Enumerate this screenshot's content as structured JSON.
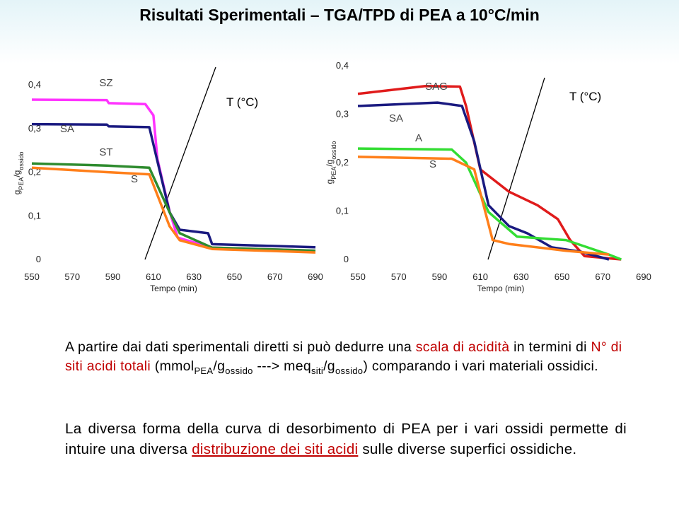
{
  "title": "Risultati Sperimentali – TGA/TPD di PEA a 10°C/min",
  "chart_data": [
    {
      "type": "line",
      "x_label": "Tempo (min)",
      "annotation": "T (°C)",
      "y_label": [
        {
          "text": "g"
        },
        {
          "text": "PEA",
          "sub": true
        },
        {
          "text": "/g"
        },
        {
          "text": "ossido",
          "sub": true
        }
      ],
      "xlim": [
        550,
        690
      ],
      "xticks": [
        550,
        570,
        590,
        610,
        630,
        650,
        670,
        690
      ],
      "ylim": [
        0,
        0.4
      ],
      "yticks": [
        0,
        {
          "value": 0.1,
          "label": "0,1"
        },
        {
          "value": 0.2,
          "label": "0,2"
        },
        {
          "value": 0.3,
          "label": "0,3"
        },
        {
          "value": 0.4,
          "label": "0,4"
        }
      ],
      "series": [
        {
          "name": "SZ",
          "color": "#ff33ff",
          "x": [
            550,
            587,
            588,
            606,
            610,
            612,
            614,
            618,
            622,
            639,
            690
          ],
          "values": [
            0.366,
            0.365,
            0.358,
            0.356,
            0.33,
            0.23,
            0.19,
            0.11,
            0.05,
            0.027,
            0.02
          ]
        },
        {
          "name": "SA",
          "color": "#1a1a80",
          "x": [
            550,
            587,
            588,
            608,
            613,
            618,
            623,
            637,
            639,
            690
          ],
          "values": [
            0.31,
            0.309,
            0.305,
            0.303,
            0.205,
            0.108,
            0.068,
            0.06,
            0.035,
            0.028
          ]
        },
        {
          "name": "ST",
          "color": "#2e8b2e",
          "x": [
            550,
            587,
            608,
            618,
            623,
            639,
            690
          ],
          "values": [
            0.22,
            0.215,
            0.21,
            0.108,
            0.06,
            0.027,
            0.02
          ]
        },
        {
          "name": "S",
          "color": "#ff7f1a",
          "x": [
            550,
            587,
            608,
            618,
            623,
            639,
            690
          ],
          "values": [
            0.21,
            0.2,
            0.195,
            0.076,
            0.044,
            0.024,
            0.016
          ]
        }
      ]
    },
    {
      "type": "line",
      "x_label": "Tempo (min)",
      "annotation": "T (°C)",
      "y_label": [
        {
          "text": "g"
        },
        {
          "text": "PEA",
          "sub": true
        },
        {
          "text": "/g"
        },
        {
          "text": "ossido",
          "sub": true
        }
      ],
      "xlim": [
        550,
        690
      ],
      "xticks": [
        550,
        570,
        590,
        610,
        630,
        650,
        670,
        690
      ],
      "ylim": [
        0,
        0.4
      ],
      "yticks": [
        0,
        {
          "value": 0.1,
          "label": "0,1"
        },
        {
          "value": 0.2,
          "label": "0,2"
        },
        {
          "value": 0.3,
          "label": "0,3"
        },
        {
          "value": 0.4,
          "label": "0,4"
        }
      ],
      "series": [
        {
          "name": "SAG",
          "color": "#e01b1b",
          "x": [
            550,
            583,
            600,
            603,
            610,
            624,
            638,
            648,
            654,
            661,
            679
          ],
          "values": [
            0.342,
            0.358,
            0.357,
            0.317,
            0.186,
            0.14,
            0.112,
            0.083,
            0.04,
            0.007,
            0
          ]
        },
        {
          "name": "SA",
          "color": "#1a1a80",
          "x": [
            550,
            589,
            601,
            607,
            614,
            624,
            633,
            645,
            659,
            673
          ],
          "values": [
            0.317,
            0.324,
            0.317,
            0.244,
            0.112,
            0.069,
            0.054,
            0.025,
            0.016,
            0
          ]
        },
        {
          "name": "A",
          "color": "#33dd33",
          "x": [
            550,
            596,
            603,
            614,
            628,
            652,
            673,
            679
          ],
          "values": [
            0.229,
            0.227,
            0.2,
            0.098,
            0.047,
            0.04,
            0.01,
            0
          ]
        },
        {
          "name": "S",
          "color": "#ff7f1a",
          "x": [
            550,
            596,
            607,
            616,
            624,
            652,
            673
          ],
          "values": [
            0.212,
            0.208,
            0.186,
            0.04,
            0.032,
            0.018,
            0.01
          ]
        }
      ]
    }
  ],
  "text": {
    "paragraph_1": [
      {
        "text": "A partire dai dati sperimentali diretti si può dedurre una "
      },
      {
        "text": "scala di acidità",
        "color": "#c00000"
      },
      {
        "text": " in termini di "
      },
      {
        "text": "N° di siti acidi totali",
        "color": "#c00000"
      },
      {
        "text": " (mmol"
      },
      {
        "text": "PEA",
        "sub": true
      },
      {
        "text": "/g"
      },
      {
        "text": "ossido",
        "sub": true
      },
      {
        "text": " ---> meq"
      },
      {
        "text": "siti",
        "sub": true
      },
      {
        "text": "/g"
      },
      {
        "text": "ossido",
        "sub": true
      },
      {
        "text": ") comparando i vari materiali ossidici."
      }
    ],
    "paragraph_2": [
      {
        "text": "La diversa forma della curva di desorbimento di PEA per i vari ossidi permette di intuire una diversa "
      },
      {
        "text": "distribuzione dei siti acidi",
        "color": "#c00000",
        "underline": true
      },
      {
        "text": " sulle diverse superfici ossidiche."
      }
    ]
  }
}
